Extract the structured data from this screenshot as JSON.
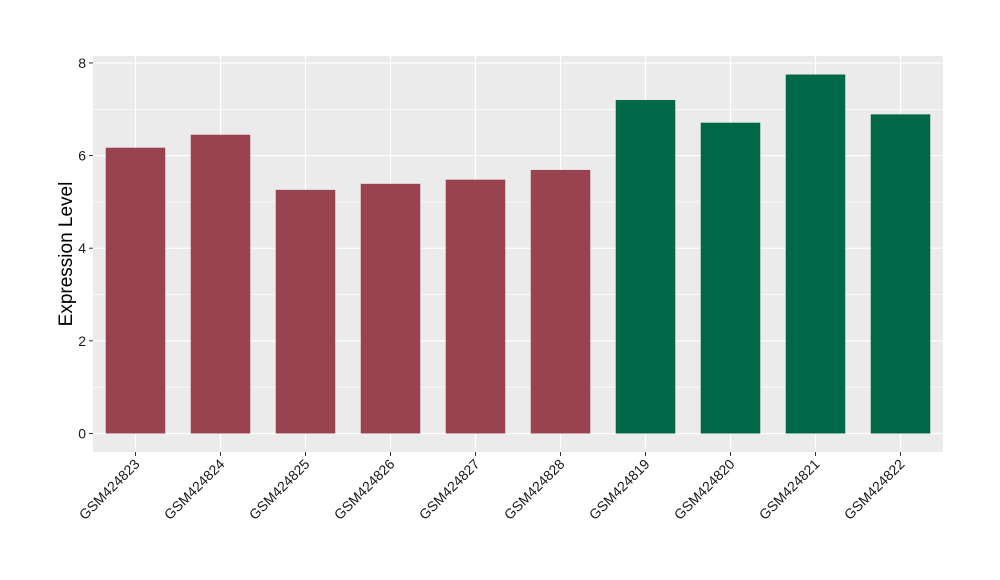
{
  "chart_data": {
    "type": "bar",
    "title": "",
    "xlabel": "",
    "ylabel": "Expression Level",
    "categories": [
      "GSM424823",
      "GSM424824",
      "GSM424825",
      "GSM424826",
      "GSM424827",
      "GSM424828",
      "GSM424819",
      "GSM424820",
      "GSM424821",
      "GSM424822"
    ],
    "values": [
      6.17,
      6.45,
      5.26,
      5.39,
      5.48,
      5.69,
      7.2,
      6.71,
      7.75,
      6.89
    ],
    "bar_colors": [
      "#9a4350",
      "#9a4350",
      "#9a4350",
      "#9a4350",
      "#9a4350",
      "#9a4350",
      "#006846",
      "#006846",
      "#006846",
      "#006846"
    ],
    "ylim": [
      -0.4,
      8.15
    ],
    "yticks": [
      0,
      2,
      4,
      6,
      8
    ],
    "grid": true,
    "panel_background": "#ebebeb",
    "grid_color": "#ffffff"
  }
}
